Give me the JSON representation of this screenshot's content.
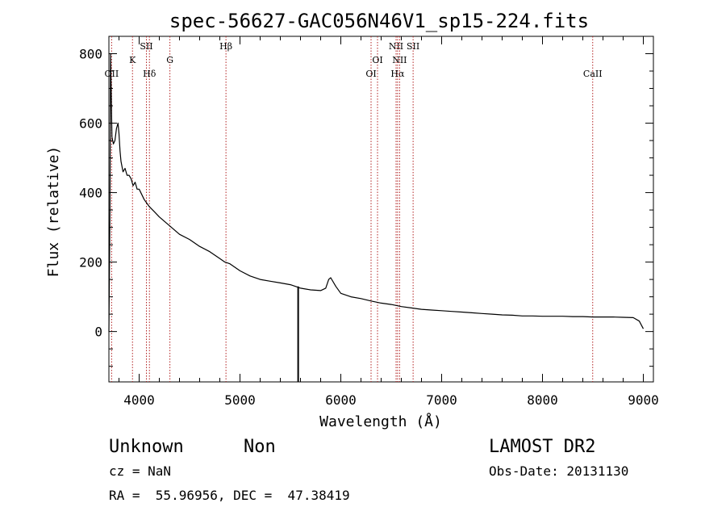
{
  "chart_data": {
    "type": "line",
    "title": "spec-56627-GAC056N46V1_sp15-224.fits",
    "xlabel": "Wavelength (Å)",
    "ylabel": "Flux (relative)",
    "xlim": [
      3700,
      9100
    ],
    "ylim": [
      -145,
      850
    ],
    "x_ticks": [
      4000,
      5000,
      6000,
      7000,
      8000,
      9000
    ],
    "y_ticks": [
      0,
      200,
      400,
      600,
      800
    ],
    "grid": false,
    "line_color": "#000000",
    "marker_color": "#b22222",
    "series": [
      {
        "x": [
          3700,
          3710,
          3716,
          3722,
          3730,
          3745,
          3760,
          3775,
          3790,
          3800,
          3810,
          3820,
          3840,
          3860,
          3880,
          3900,
          3920,
          3940,
          3960,
          3980,
          4000,
          4050,
          4100,
          4150,
          4200,
          4300,
          4400,
          4500,
          4600,
          4700,
          4800,
          4850,
          4900,
          5000,
          5100,
          5200,
          5300,
          5400,
          5500,
          5570,
          5600,
          5700,
          5800,
          5850,
          5880,
          5900,
          5950,
          6000,
          6100,
          6200,
          6300,
          6400,
          6500,
          6600,
          6700,
          6800,
          6900,
          7000,
          7100,
          7200,
          7300,
          7400,
          7500,
          7600,
          7700,
          7800,
          7900,
          8000,
          8100,
          8200,
          8300,
          8400,
          8500,
          8600,
          8700,
          8800,
          8900,
          8960,
          9000
        ],
        "y": [
          0,
          350,
          800,
          700,
          560,
          540,
          550,
          585,
          600,
          570,
          520,
          490,
          460,
          470,
          450,
          450,
          440,
          420,
          430,
          410,
          410,
          380,
          360,
          345,
          330,
          305,
          280,
          265,
          245,
          230,
          210,
          200,
          195,
          175,
          160,
          150,
          145,
          140,
          135,
          128,
          125,
          120,
          118,
          125,
          150,
          155,
          130,
          110,
          100,
          95,
          88,
          82,
          78,
          72,
          68,
          64,
          62,
          60,
          58,
          56,
          54,
          52,
          50,
          48,
          47,
          45,
          45,
          44,
          44,
          44,
          43,
          43,
          42,
          42,
          42,
          41,
          40,
          30,
          8
        ]
      }
    ],
    "line_markers": [
      {
        "label": "OII",
        "x": 3727,
        "row": 3
      },
      {
        "label": "K",
        "x": 3934,
        "row": 2
      },
      {
        "label": "SII",
        "x": 4072,
        "row": 1
      },
      {
        "label": "Hδ",
        "x": 4102,
        "row": 3
      },
      {
        "label": "G",
        "x": 4305,
        "row": 2
      },
      {
        "label": "Hβ",
        "x": 4861,
        "row": 1
      },
      {
        "label": "OI",
        "x": 6300,
        "row": 3
      },
      {
        "label": "OI",
        "x": 6364,
        "row": 2
      },
      {
        "label": "NII",
        "x": 6548,
        "row": 1
      },
      {
        "label": "Hα",
        "x": 6563,
        "row": 3
      },
      {
        "label": "NII",
        "x": 6583,
        "row": 2
      },
      {
        "label": "SII",
        "x": 6717,
        "row": 1
      },
      {
        "label": "CaII",
        "x": 8498,
        "row": 3
      }
    ],
    "spike": {
      "x": 5577,
      "y_top": 130,
      "y_bottom": -145
    }
  },
  "info": {
    "class_text": "Unknown",
    "subclass_text": "Non",
    "cz_text": "cz = NaN",
    "radec_text": "RA =  55.96956, DEC =  47.38419",
    "survey_text": "LAMOST DR2",
    "obsdate_text": "Obs-Date: 20131130"
  }
}
